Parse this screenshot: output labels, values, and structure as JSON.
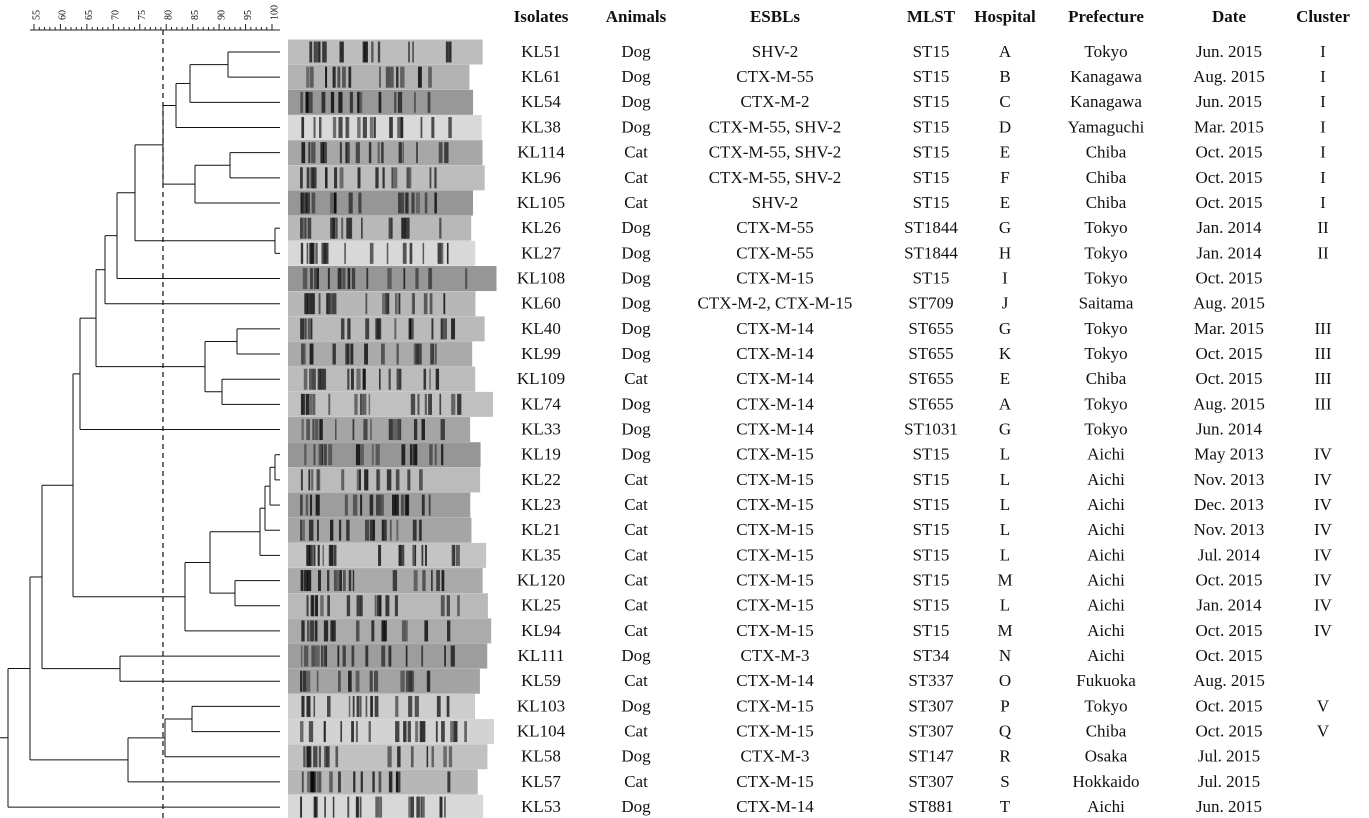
{
  "scale": {
    "ticks": [
      55,
      60,
      65,
      70,
      75,
      80,
      85,
      90,
      95,
      100
    ]
  },
  "table": {
    "columns": [
      "Isolates",
      "Animals",
      "ESBLs",
      "MLST",
      "Hospital",
      "Prefecture",
      "Date",
      "Cluster"
    ],
    "rows": [
      [
        "KL51",
        "Dog",
        "SHV-2",
        "ST15",
        "A",
        "Tokyo",
        "Jun. 2015",
        "I"
      ],
      [
        "KL61",
        "Dog",
        "CTX-M-55",
        "ST15",
        "B",
        "Kanagawa",
        "Aug. 2015",
        "I"
      ],
      [
        "KL54",
        "Dog",
        "CTX-M-2",
        "ST15",
        "C",
        "Kanagawa",
        "Jun. 2015",
        "I"
      ],
      [
        "KL38",
        "Dog",
        "CTX-M-55, SHV-2",
        "ST15",
        "D",
        "Yamaguchi",
        "Mar. 2015",
        "I"
      ],
      [
        "KL114",
        "Cat",
        "CTX-M-55, SHV-2",
        "ST15",
        "E",
        "Chiba",
        "Oct. 2015",
        "I"
      ],
      [
        "KL96",
        "Cat",
        "CTX-M-55, SHV-2",
        "ST15",
        "F",
        "Chiba",
        "Oct. 2015",
        "I"
      ],
      [
        "KL105",
        "Cat",
        "SHV-2",
        "ST15",
        "E",
        "Chiba",
        "Oct. 2015",
        "I"
      ],
      [
        "KL26",
        "Dog",
        "CTX-M-55",
        "ST1844",
        "G",
        "Tokyo",
        "Jan. 2014",
        "II"
      ],
      [
        "KL27",
        "Dog",
        "CTX-M-55",
        "ST1844",
        "H",
        "Tokyo",
        "Jan. 2014",
        "II"
      ],
      [
        "KL108",
        "Dog",
        "CTX-M-15",
        "ST15",
        "I",
        "Tokyo",
        "Oct. 2015",
        null
      ],
      [
        "KL60",
        "Dog",
        "CTX-M-2, CTX-M-15",
        "ST709",
        "J",
        "Saitama",
        "Aug. 2015",
        null
      ],
      [
        "KL40",
        "Dog",
        "CTX-M-14",
        "ST655",
        "G",
        "Tokyo",
        "Mar. 2015",
        "III"
      ],
      [
        "KL99",
        "Dog",
        "CTX-M-14",
        "ST655",
        "K",
        "Tokyo",
        "Oct. 2015",
        "III"
      ],
      [
        "KL109",
        "Cat",
        "CTX-M-14",
        "ST655",
        "E",
        "Chiba",
        "Oct. 2015",
        "III"
      ],
      [
        "KL74",
        "Dog",
        "CTX-M-14",
        "ST655",
        "A",
        "Tokyo",
        "Aug. 2015",
        "III"
      ],
      [
        "KL33",
        "Dog",
        "CTX-M-14",
        "ST1031",
        "G",
        "Tokyo",
        "Jun. 2014",
        null
      ],
      [
        "KL19",
        "Dog",
        "CTX-M-15",
        "ST15",
        "L",
        "Aichi",
        "May 2013",
        "IV"
      ],
      [
        "KL22",
        "Cat",
        "CTX-M-15",
        "ST15",
        "L",
        "Aichi",
        "Nov. 2013",
        "IV"
      ],
      [
        "KL23",
        "Cat",
        "CTX-M-15",
        "ST15",
        "L",
        "Aichi",
        "Dec. 2013",
        "IV"
      ],
      [
        "KL21",
        "Cat",
        "CTX-M-15",
        "ST15",
        "L",
        "Aichi",
        "Nov. 2013",
        "IV"
      ],
      [
        "KL35",
        "Cat",
        "CTX-M-15",
        "ST15",
        "L",
        "Aichi",
        "Jul. 2014",
        "IV"
      ],
      [
        "KL120",
        "Cat",
        "CTX-M-15",
        "ST15",
        "M",
        "Aichi",
        "Oct. 2015",
        "IV"
      ],
      [
        "KL25",
        "Cat",
        "CTX-M-15",
        "ST15",
        "L",
        "Aichi",
        "Jan. 2014",
        "IV"
      ],
      [
        "KL94",
        "Cat",
        "CTX-M-15",
        "ST15",
        "M",
        "Aichi",
        "Oct. 2015",
        "IV"
      ],
      [
        "KL111",
        "Dog",
        "CTX-M-3",
        "ST34",
        "N",
        "Aichi",
        "Oct. 2015",
        null
      ],
      [
        "KL59",
        "Cat",
        "CTX-M-14",
        "ST337",
        "O",
        "Fukuoka",
        "Aug. 2015",
        null
      ],
      [
        "KL103",
        "Dog",
        "CTX-M-15",
        "ST307",
        "P",
        "Tokyo",
        "Oct. 2015",
        "V"
      ],
      [
        "KL104",
        "Cat",
        "CTX-M-15",
        "ST307",
        "Q",
        "Chiba",
        "Oct. 2015",
        "V"
      ],
      [
        "KL58",
        "Dog",
        "CTX-M-3",
        "ST147",
        "R",
        "Osaka",
        "Jul. 2015",
        null
      ],
      [
        "KL57",
        "Cat",
        "CTX-M-15",
        "ST307",
        "S",
        "Hokkaido",
        "Jul. 2015",
        null
      ],
      [
        "KL53",
        "Dog",
        "CTX-M-14",
        "ST881",
        "T",
        "Aichi",
        "Jun. 2015",
        null
      ]
    ]
  }
}
